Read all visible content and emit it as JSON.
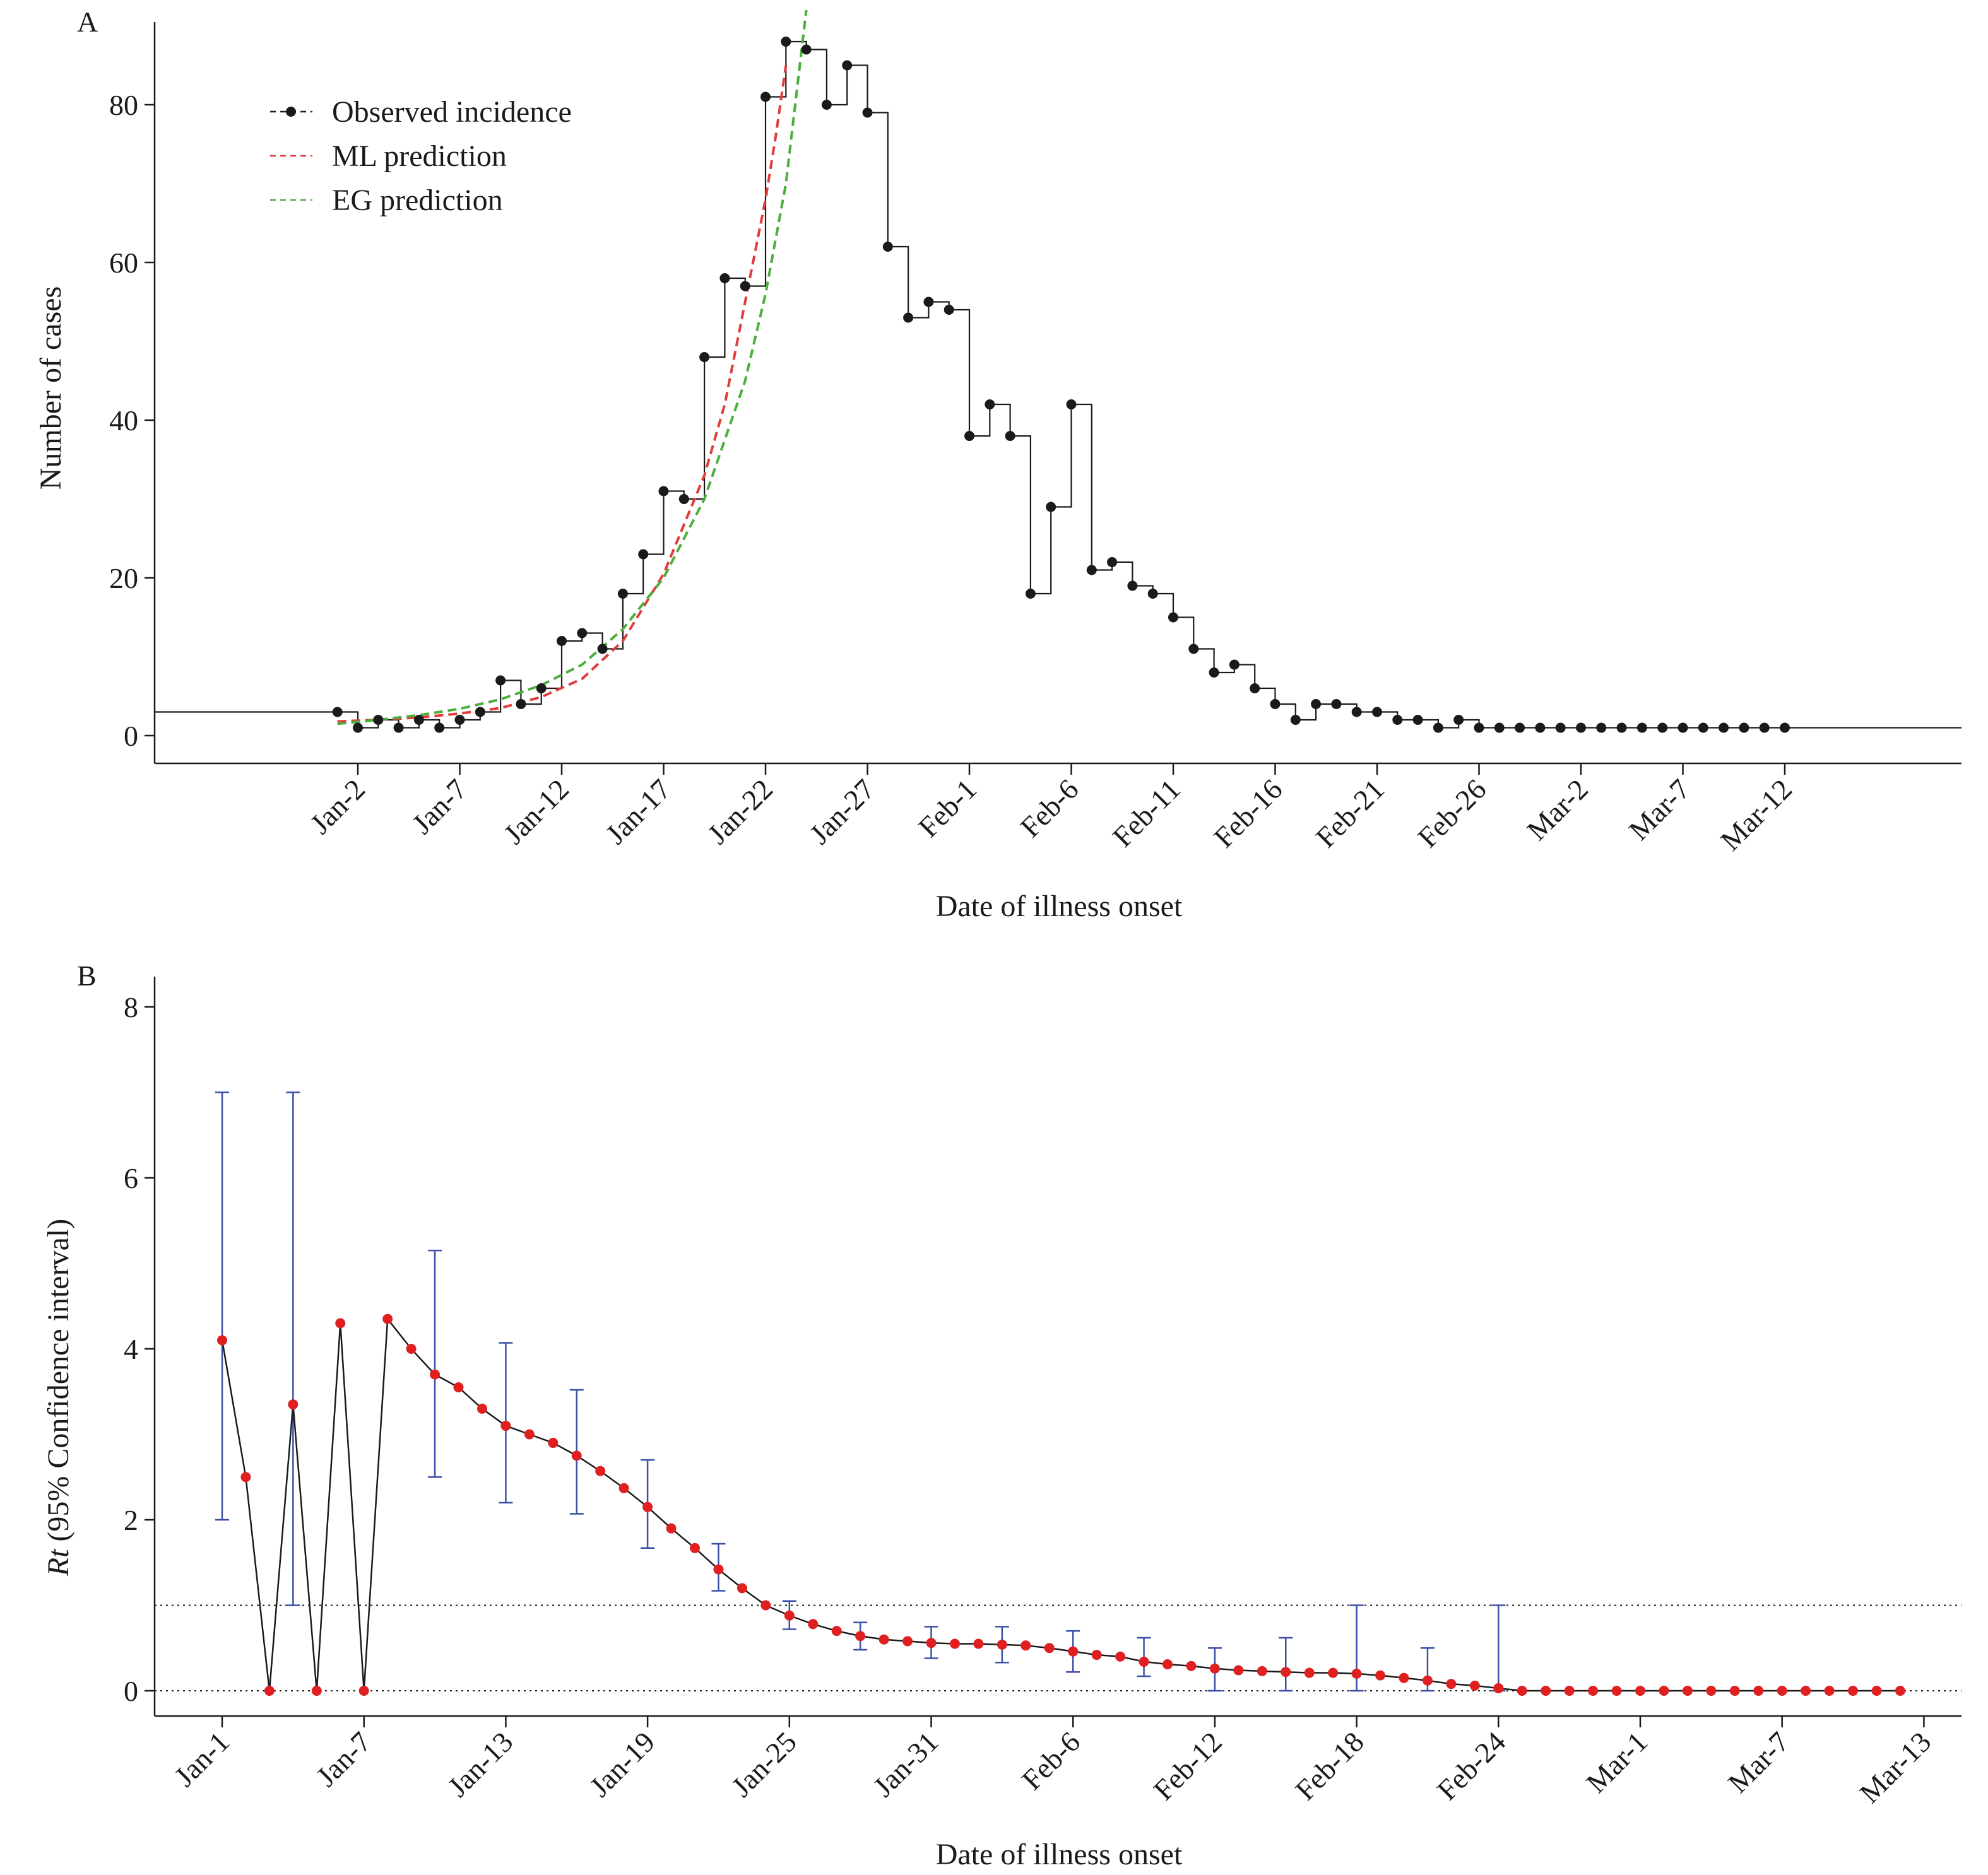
{
  "chart_data": [
    {
      "type": "line",
      "panel_label": "A",
      "xlabel": "Date of illness onset",
      "ylabel": "Number of cases",
      "ylim": [
        0,
        90
      ],
      "yticks": [
        0,
        20,
        40,
        60,
        80
      ],
      "xtick_labels": [
        "Jan-2",
        "Jan-7",
        "Jan-12",
        "Jan-17",
        "Jan-22",
        "Jan-27",
        "Feb-1",
        "Feb-6",
        "Feb-11",
        "Feb-16",
        "Feb-21",
        "Feb-26",
        "Mar-2",
        "Mar-7",
        "Mar-12"
      ],
      "xtick_dates": [
        "2020-01-02",
        "2020-01-07",
        "2020-01-12",
        "2020-01-17",
        "2020-01-22",
        "2020-01-27",
        "2020-02-01",
        "2020-02-06",
        "2020-02-11",
        "2020-02-16",
        "2020-02-21",
        "2020-02-26",
        "2020-03-02",
        "2020-03-07",
        "2020-03-12"
      ],
      "legend_position": "top-left",
      "series": [
        {
          "name": "Observed incidence",
          "style": "step",
          "color": "#1a1a1a",
          "x_start": "2020-01-01",
          "x_end": "2020-03-12",
          "values": [
            3,
            1,
            2,
            1,
            2,
            1,
            2,
            3,
            7,
            4,
            6,
            12,
            13,
            11,
            18,
            23,
            31,
            30,
            48,
            58,
            57,
            81,
            88,
            87,
            80,
            85,
            79,
            62,
            53,
            55,
            54,
            38,
            42,
            38,
            18,
            29,
            42,
            21,
            22,
            19,
            18,
            15,
            11,
            8,
            9,
            6,
            4,
            2,
            4,
            4,
            3,
            3,
            2,
            2,
            1,
            2,
            1,
            1,
            1,
            1,
            1,
            1,
            1,
            1,
            1,
            1,
            1,
            1,
            1,
            1,
            1,
            1
          ]
        },
        {
          "name": "ML prediction",
          "style": "dashed",
          "color": "#e03c3c",
          "x": [
            "2020-01-01",
            "2020-01-03",
            "2020-01-05",
            "2020-01-07",
            "2020-01-09",
            "2020-01-11",
            "2020-01-13",
            "2020-01-15",
            "2020-01-17",
            "2020-01-19",
            "2020-01-20",
            "2020-01-21",
            "2020-01-22",
            "2020-01-22T12:00",
            "2020-01-23"
          ],
          "values": [
            1.8,
            2.0,
            2.3,
            2.8,
            3.5,
            4.9,
            7.2,
            12.0,
            20.5,
            33.0,
            42.0,
            55.0,
            68.0,
            76.0,
            85.0
          ]
        },
        {
          "name": "EG prediction",
          "style": "dashed",
          "color": "#4bae3c",
          "x": [
            "2020-01-01",
            "2020-01-03",
            "2020-01-05",
            "2020-01-07",
            "2020-01-09",
            "2020-01-11",
            "2020-01-13",
            "2020-01-15",
            "2020-01-17",
            "2020-01-19",
            "2020-01-21",
            "2020-01-22",
            "2020-01-23",
            "2020-01-24"
          ],
          "values": [
            1.5,
            2.0,
            2.6,
            3.4,
            4.6,
            6.4,
            9.0,
            13.5,
            20.0,
            30.0,
            45.0,
            56.0,
            70.0,
            92.0
          ]
        }
      ]
    },
    {
      "type": "line",
      "panel_label": "B",
      "xlabel": "Date of illness onset",
      "ylabel_italic": "Rt",
      "ylabel_rest": " (95% Confidence interval)",
      "ylim": [
        0,
        8
      ],
      "yticks": [
        0,
        2,
        4,
        6,
        8
      ],
      "reference_lines": [
        0,
        1
      ],
      "xtick_labels": [
        "Jan-1",
        "Jan-7",
        "Jan-13",
        "Jan-19",
        "Jan-25",
        "Jan-31",
        "Feb-6",
        "Feb-12",
        "Feb-18",
        "Feb-24",
        "Mar-1",
        "Mar-7",
        "Mar-13"
      ],
      "xtick_dates": [
        "2020-01-01",
        "2020-01-07",
        "2020-01-13",
        "2020-01-19",
        "2020-01-25",
        "2020-01-31",
        "2020-02-06",
        "2020-02-12",
        "2020-02-18",
        "2020-02-24",
        "2020-03-01",
        "2020-03-07",
        "2020-03-13"
      ],
      "series": [
        {
          "name": "",
          "color": "#e02020",
          "line_color": "#1a1a1a",
          "x_start": "2020-01-01",
          "x_end": "2020-03-12",
          "values": [
            4.1,
            2.5,
            0,
            3.35,
            0,
            4.3,
            0,
            4.35,
            4.0,
            3.7,
            3.55,
            3.3,
            3.1,
            3.0,
            2.9,
            2.75,
            2.57,
            2.37,
            2.15,
            1.9,
            1.67,
            1.42,
            1.2,
            1.0,
            0.88,
            0.78,
            0.7,
            0.64,
            0.6,
            0.58,
            0.56,
            0.55,
            0.55,
            0.54,
            0.53,
            0.5,
            0.46,
            0.42,
            0.4,
            0.34,
            0.31,
            0.29,
            0.26,
            0.24,
            0.23,
            0.22,
            0.21,
            0.21,
            0.2,
            0.18,
            0.15,
            0.12,
            0.08,
            0.06,
            0.03,
            0,
            0,
            0,
            0,
            0,
            0,
            0,
            0,
            0,
            0,
            0,
            0,
            0,
            0,
            0,
            0,
            0
          ]
        }
      ],
      "error_bars": {
        "color": "#3a50a8",
        "x": [
          "2020-01-01",
          "2020-01-04",
          "2020-01-10",
          "2020-01-13",
          "2020-01-16",
          "2020-01-19",
          "2020-01-22",
          "2020-01-25",
          "2020-01-28",
          "2020-01-31",
          "2020-02-03",
          "2020-02-06",
          "2020-02-09",
          "2020-02-12",
          "2020-02-15",
          "2020-02-18",
          "2020-02-21",
          "2020-02-24"
        ],
        "lower": [
          2.0,
          1.0,
          2.5,
          2.2,
          2.07,
          1.67,
          1.17,
          0.72,
          0.48,
          0.38,
          0.33,
          0.22,
          0.17,
          0.0,
          0.0,
          0.0,
          0.0,
          0.0
        ],
        "upper": [
          7.0,
          7.0,
          5.15,
          4.07,
          3.52,
          2.7,
          1.72,
          1.05,
          0.8,
          0.75,
          0.75,
          0.7,
          0.62,
          0.5,
          0.62,
          1.0,
          0.5,
          1.0
        ]
      }
    }
  ]
}
